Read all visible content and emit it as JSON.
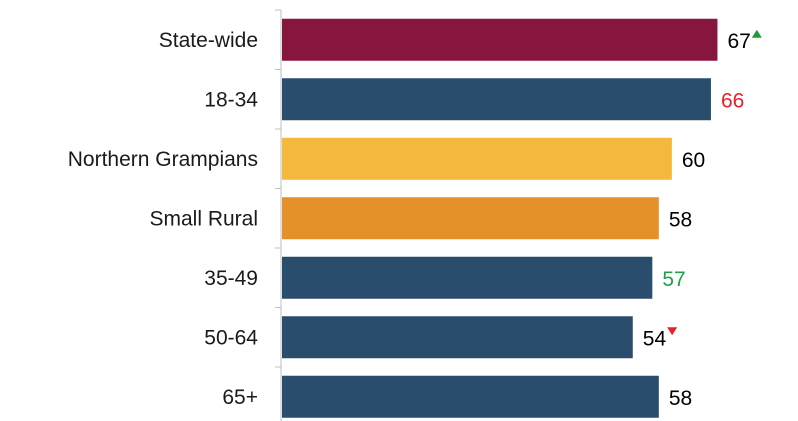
{
  "chart_data": {
    "type": "bar",
    "orientation": "horizontal",
    "categories": [
      "State-wide",
      "18-34",
      "Northern Grampians",
      "Small Rural",
      "35-49",
      "50-64",
      "65+"
    ],
    "values": [
      67,
      66,
      60,
      58,
      57,
      54,
      58
    ],
    "bar_colors": [
      "#86163d",
      "#2a4d6e",
      "#f4b93c",
      "#e5912a",
      "#2a4d6e",
      "#2a4d6e",
      "#2a4d6e"
    ],
    "label_colors": [
      "#000000",
      "#e8202a",
      "#000000",
      "#000000",
      "#22a04b",
      "#000000",
      "#000000"
    ],
    "markers": [
      "up",
      null,
      null,
      null,
      null,
      "down",
      null
    ],
    "marker_colors": {
      "up": "#1f9a3c",
      "down": "#e8202a"
    },
    "xlim": [
      0,
      70
    ],
    "grid": false,
    "title": "",
    "xlabel": "",
    "ylabel": ""
  }
}
